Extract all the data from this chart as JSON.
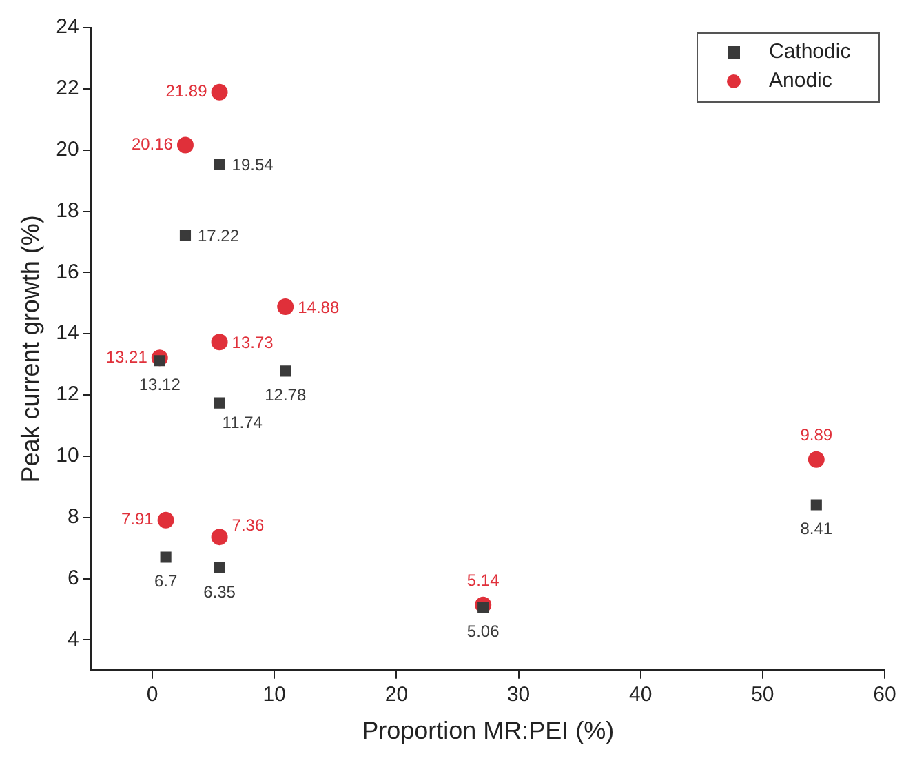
{
  "chart_data": {
    "type": "scatter",
    "xlabel": "Proportion MR:PEI (%)",
    "ylabel": "Peak current growth (%)",
    "xlim": [
      -5,
      60
    ],
    "xticks": [
      0,
      10,
      20,
      30,
      40,
      50,
      60
    ],
    "ylim": [
      3,
      24
    ],
    "yticks": [
      4,
      6,
      8,
      10,
      12,
      14,
      16,
      18,
      20,
      22,
      24
    ],
    "grid": false,
    "legend": "top right",
    "data_labels": true,
    "series": [
      {
        "name": "Cathodic",
        "color": "#3a3a3a",
        "marker": "square",
        "x": [
          0.6,
          1.1,
          2.7,
          5.5,
          5.5,
          5.5,
          10.9,
          27.1,
          54.4
        ],
        "values": [
          13.12,
          6.7,
          17.22,
          19.54,
          11.74,
          6.35,
          12.78,
          5.06,
          8.41
        ]
      },
      {
        "name": "Anodic",
        "color": "#e0303a",
        "marker": "circle",
        "x": [
          0.6,
          1.1,
          2.7,
          5.5,
          5.5,
          5.5,
          10.9,
          27.1,
          54.4
        ],
        "values": [
          13.21,
          7.91,
          20.16,
          21.89,
          13.73,
          7.36,
          14.88,
          5.14,
          9.89
        ]
      }
    ]
  }
}
